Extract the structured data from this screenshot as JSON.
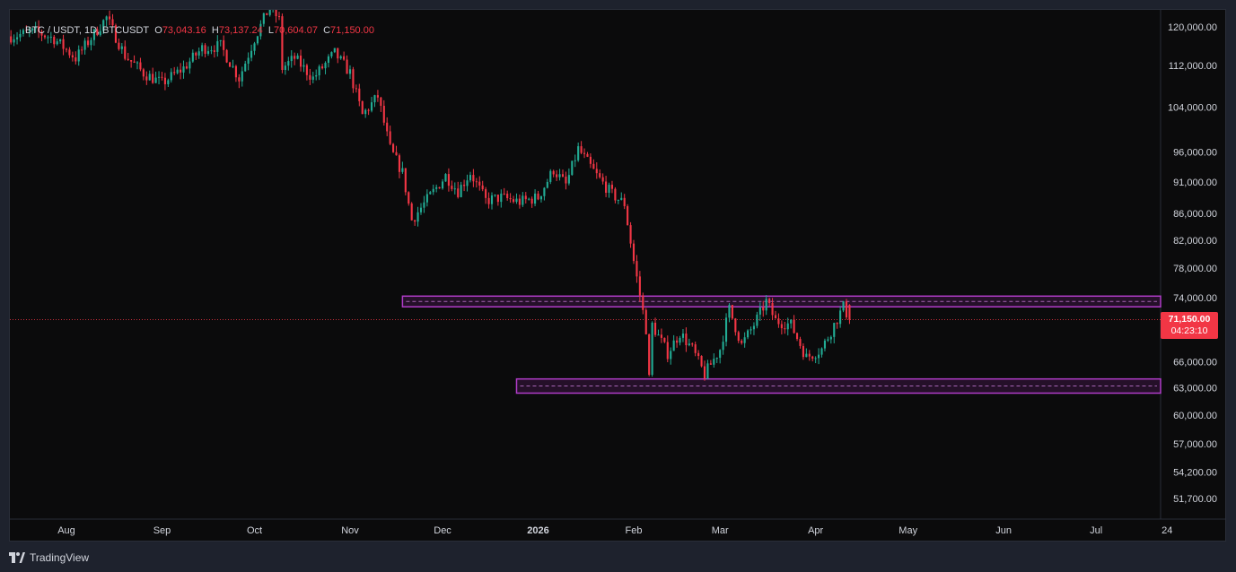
{
  "legend": {
    "symbol": "BTC / USDT, 1D, BTCUSDT",
    "open_label": "O",
    "open": "73,043.16",
    "high_label": "H",
    "high": "73,137.24",
    "low_label": "L",
    "low": "70,604.07",
    "close_label": "C",
    "close": "71,150.00"
  },
  "price_badge": {
    "price": "71,150.00",
    "countdown": "04:23:10"
  },
  "footer": {
    "brand": "TradingView"
  },
  "colors": {
    "up": "#22ab94",
    "down": "#f23645",
    "zone": "#b03cc8",
    "axis_text": "#d1d4dc",
    "background": "#0b0b0c"
  },
  "chart_data": {
    "type": "candlestick",
    "title": "BTC / USDT, 1D, BTCUSDT",
    "y_scale": "log",
    "y_ticks": [
      120000,
      112000,
      104000,
      96000,
      91000,
      86000,
      82000,
      78000,
      74000,
      66000,
      63000,
      60000,
      57000,
      54200,
      51700
    ],
    "y_tick_labels": [
      "120,000.00",
      "112,000.00",
      "104,000.00",
      "96,000.00",
      "91,000.00",
      "86,000.00",
      "82,000.00",
      "78,000.00",
      "74,000.00",
      "66,000.00",
      "63,000.00",
      "60,000.00",
      "57,000.00",
      "54,200.00",
      "51,700.00"
    ],
    "x_ticks": [
      "2025-08-01",
      "2025-09-01",
      "2025-10-01",
      "2025-11-01",
      "2025-12-01",
      "2026-01-01",
      "2026-02-01",
      "2026-03-01",
      "2026-04-01",
      "2026-05-01",
      "2026-06-01",
      "2026-07-01",
      "2026-07-24"
    ],
    "x_tick_labels": [
      "Aug",
      "Sep",
      "Oct",
      "Nov",
      "Dec",
      "2026",
      "Feb",
      "Mar",
      "Apr",
      "May",
      "Jun",
      "Jul",
      "24"
    ],
    "last_price": 71150,
    "zones": [
      {
        "from": "2025-11-18",
        "y_low": 72800,
        "y_high": 74200,
        "mid": 73500
      },
      {
        "from": "2025-12-25",
        "y_low": 62400,
        "y_high": 64000,
        "mid": 63200
      }
    ],
    "path": [
      [
        "2025-07-14",
        118000
      ],
      [
        "2025-07-22",
        119000
      ],
      [
        "2025-07-28",
        117500
      ],
      [
        "2025-08-04",
        113500
      ],
      [
        "2025-08-10",
        118500
      ],
      [
        "2025-08-14",
        122000
      ],
      [
        "2025-08-20",
        114000
      ],
      [
        "2025-08-26",
        110500
      ],
      [
        "2025-09-01",
        108500
      ],
      [
        "2025-09-08",
        111500
      ],
      [
        "2025-09-14",
        115500
      ],
      [
        "2025-09-20",
        116000
      ],
      [
        "2025-09-26",
        109500
      ],
      [
        "2025-10-01",
        117500
      ],
      [
        "2025-10-06",
        124500
      ],
      [
        "2025-10-09",
        121500
      ],
      [
        "2025-10-10",
        111500
      ],
      [
        "2025-10-14",
        113500
      ],
      [
        "2025-10-20",
        109500
      ],
      [
        "2025-10-27",
        114500
      ],
      [
        "2025-11-01",
        110500
      ],
      [
        "2025-11-05",
        102500
      ],
      [
        "2025-11-10",
        106000
      ],
      [
        "2025-11-14",
        96500
      ],
      [
        "2025-11-18",
        92500
      ],
      [
        "2025-11-21",
        85000
      ],
      [
        "2025-11-25",
        87500
      ],
      [
        "2025-12-02",
        92000
      ],
      [
        "2025-12-06",
        89500
      ],
      [
        "2025-12-10",
        92500
      ],
      [
        "2025-12-15",
        88000
      ],
      [
        "2025-12-20",
        88500
      ],
      [
        "2025-12-26",
        87800
      ],
      [
        "2026-01-01",
        88500
      ],
      [
        "2026-01-06",
        93000
      ],
      [
        "2026-01-10",
        90500
      ],
      [
        "2026-01-14",
        96500
      ],
      [
        "2026-01-20",
        92000
      ],
      [
        "2026-01-25",
        89000
      ],
      [
        "2026-01-29",
        87500
      ],
      [
        "2026-02-01",
        79000
      ],
      [
        "2026-02-05",
        70000
      ],
      [
        "2026-02-06",
        64000
      ],
      [
        "2026-02-07",
        70500
      ],
      [
        "2026-02-12",
        67000
      ],
      [
        "2026-02-16",
        69500
      ],
      [
        "2026-02-20",
        67500
      ],
      [
        "2026-02-24",
        64500
      ],
      [
        "2026-03-01",
        67500
      ],
      [
        "2026-03-04",
        72500
      ],
      [
        "2026-03-08",
        68000
      ],
      [
        "2026-03-12",
        70500
      ],
      [
        "2026-03-16",
        73500
      ],
      [
        "2026-03-19",
        71000
      ],
      [
        "2026-03-24",
        70500
      ],
      [
        "2026-03-29",
        66500
      ],
      [
        "2026-04-03",
        67500
      ],
      [
        "2026-04-07",
        70500
      ],
      [
        "2026-04-10",
        72800
      ],
      [
        "2026-04-12",
        71150
      ]
    ]
  }
}
